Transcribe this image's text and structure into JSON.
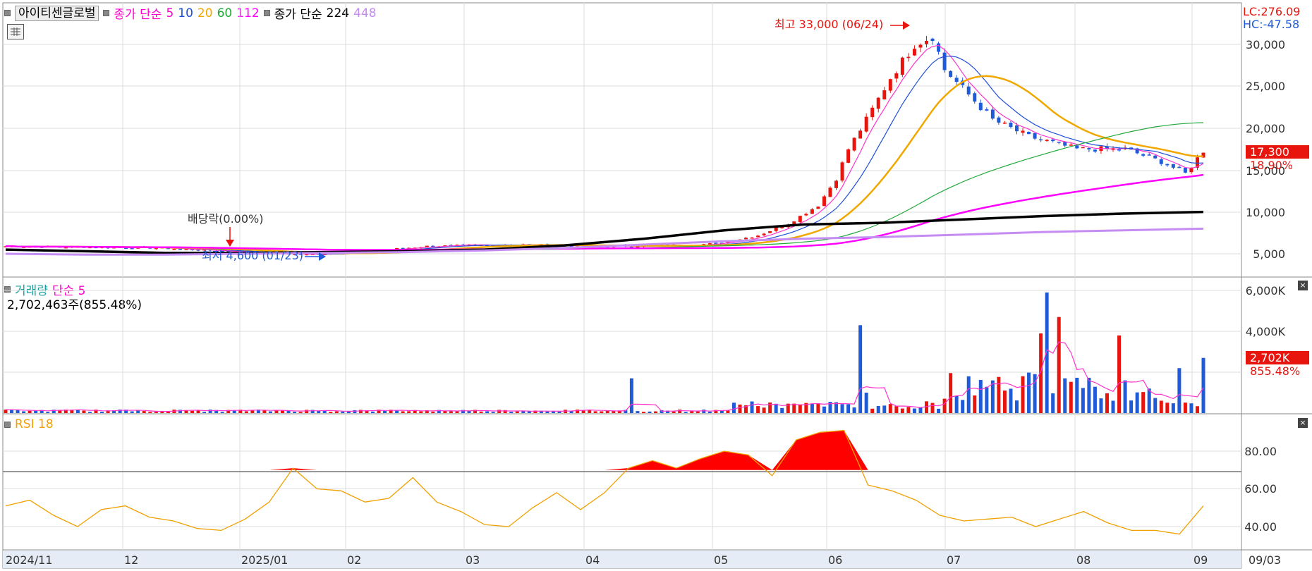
{
  "stock": {
    "name": "아이티센글로벌"
  },
  "legend": {
    "price_ma_prefix": "종가 단순",
    "ma_periods": [
      "5",
      "10",
      "20",
      "60",
      "112"
    ],
    "ma_colors": [
      "#ff00cc",
      "#1f4fd8",
      "#f0a800",
      "#22a83a",
      "#ff00ff"
    ],
    "price_ma2_prefix": "종가 단순",
    "ma2_periods": [
      "224",
      "448"
    ],
    "ma2_colors": [
      "#000000",
      "#c58cf2"
    ]
  },
  "right_labels": {
    "lc": "LC:276.09",
    "hc": "HC:-47.58"
  },
  "price_panel": {
    "y_ticks": [
      "30,000",
      "25,000",
      "20,000",
      "15,000",
      "10,000",
      "5,000"
    ],
    "current_price": "17,300",
    "current_change": "18.90%",
    "high_annotation": "최고 33,000 (06/24)",
    "low_annotation": "최저 4,600 (01/23)",
    "dividend_annotation": "배당락(0.00%)"
  },
  "volume_panel": {
    "legend_label": "거래량",
    "ma_label": "단순 5",
    "info": "2,702,463주(855.48%)",
    "y_ticks": [
      "6,000K",
      "4,000K"
    ],
    "current_value": "2,702K",
    "current_pct": "855.48%"
  },
  "rsi_panel": {
    "legend_label": "RSI 18",
    "y_ticks": [
      "80.00",
      "60.00",
      "40.00"
    ]
  },
  "x_axis": {
    "labels": [
      "2024/11",
      "12",
      "2025/01",
      "02",
      "03",
      "04",
      "05",
      "06",
      "07",
      "08",
      "09"
    ],
    "last_date": "09/03"
  },
  "chart_data": [
    {
      "type": "line",
      "title": "",
      "series": [
        {
          "name": "종가",
          "x": [
            "2024/11",
            "2024/12",
            "2025/01",
            "2025/02",
            "2025/03",
            "2025/04",
            "2025/05",
            "2025/05/20",
            "2025/06/01",
            "2025/06/10",
            "2025/06/24",
            "2025/07/01",
            "2025/07/15",
            "2025/08/01",
            "2025/08/15",
            "2025/09/03"
          ],
          "values": [
            5900,
            5700,
            5200,
            5300,
            6000,
            5900,
            6200,
            7800,
            11000,
            24000,
            30000,
            26000,
            19000,
            17500,
            17500,
            17300
          ]
        },
        {
          "name": "단순 224",
          "values": [
            5500,
            5300,
            5100,
            5100,
            5200,
            5300,
            5500,
            6000,
            6800,
            7800,
            8500,
            8700,
            9100,
            9500,
            9800,
            10000
          ]
        },
        {
          "name": "단순 448",
          "values": [
            5000,
            4900,
            4900,
            5000,
            5100,
            5200,
            5400,
            5700,
            6100,
            6500,
            6800,
            7000,
            7300,
            7600,
            7800,
            8000
          ]
        }
      ],
      "ylim": [
        3000,
        33500
      ],
      "highlights": {
        "max": 33000,
        "max_date": "06/24",
        "min": 4600,
        "min_date": "01/23"
      }
    },
    {
      "type": "bar",
      "title": "",
      "series": [
        {
          "name": "거래량",
          "values": [
            110,
            80,
            250,
            1700,
            600,
            4300,
            2000,
            5900,
            4700,
            3800,
            1500,
            1700,
            900,
            600,
            2700
          ]
        }
      ],
      "categories": [
        "2024/11",
        "2025/01",
        "2025/02",
        "2025/03",
        "2025/04",
        "2025/04/23",
        "2025/05/20",
        "2025/06/06",
        "2025/06/10",
        "2025/06/24",
        "2025/07/15",
        "2025/07/22",
        "2025/08/01",
        "2025/08/20",
        "2025/09/03"
      ],
      "ylabel": "K"
    },
    {
      "type": "line",
      "title": "",
      "series": [
        {
          "name": "RSI 18",
          "values": [
            51,
            54,
            46,
            40,
            49,
            51,
            45,
            43,
            39,
            38,
            44,
            53,
            71,
            60,
            59,
            53,
            55,
            66,
            53,
            48,
            41,
            40,
            50,
            58,
            49,
            58,
            71,
            75,
            71,
            76,
            80,
            78,
            67,
            86,
            90,
            91,
            62,
            59,
            54,
            46,
            43,
            44,
            45,
            40,
            44,
            48,
            42,
            38,
            38,
            36,
            51
          ]
        }
      ],
      "ylim": [
        30,
        95
      ],
      "threshold": 70
    }
  ]
}
